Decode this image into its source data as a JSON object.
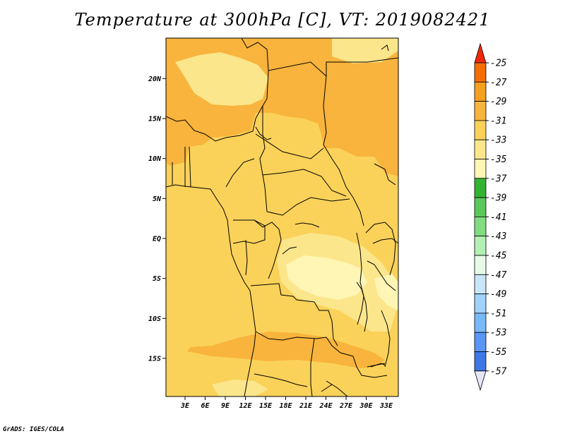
{
  "title": "Temperature at 300hPa [C], VT: 2019082421",
  "credit": "GrADS: IGES/COLA",
  "lat_labels": [
    {
      "label": "20N",
      "deg": 20
    },
    {
      "label": "15N",
      "deg": 15
    },
    {
      "label": "10N",
      "deg": 10
    },
    {
      "label": "5N",
      "deg": 5
    },
    {
      "label": "EQ",
      "deg": 0
    },
    {
      "label": "5S",
      "deg": -5
    },
    {
      "label": "10S",
      "deg": -10
    },
    {
      "label": "15S",
      "deg": -15
    }
  ],
  "lon_labels": [
    {
      "label": "3E",
      "deg": 3
    },
    {
      "label": "6E",
      "deg": 6
    },
    {
      "label": "9E",
      "deg": 9
    },
    {
      "label": "12E",
      "deg": 12
    },
    {
      "label": "15E",
      "deg": 15
    },
    {
      "label": "18E",
      "deg": 18
    },
    {
      "label": "21E",
      "deg": 21
    },
    {
      "label": "24E",
      "deg": 24
    },
    {
      "label": "27E",
      "deg": 27
    },
    {
      "label": "30E",
      "deg": 30
    },
    {
      "label": "33E",
      "deg": 33
    }
  ],
  "colorbar": {
    "levels": [
      "-25",
      "-27",
      "-29",
      "-31",
      "-33",
      "-35",
      "-37",
      "-39",
      "-41",
      "-43",
      "-45",
      "-47",
      "-49",
      "-51",
      "-53",
      "-55",
      "-57"
    ],
    "colors": [
      "#f0280a",
      "#f56e05",
      "#f5a01e",
      "#f8b43c",
      "#fad25a",
      "#fce68c",
      "#fff5b4",
      "#32b432",
      "#5ac85a",
      "#82dc82",
      "#b4f0b4",
      "#e6fae6",
      "#c8e6fa",
      "#a0d2fa",
      "#78b9fa",
      "#5a96f5",
      "#3c78e6",
      "#1e55d2",
      "#0f32a5",
      "#0a1478",
      "#e6e6fa"
    ]
  },
  "map_colors": {
    "ocean_fill": "#fad25a",
    "warm_fill": "#f8b43c",
    "cool_fill": "#fce68c",
    "coolest_fill": "#fff5b4"
  }
}
